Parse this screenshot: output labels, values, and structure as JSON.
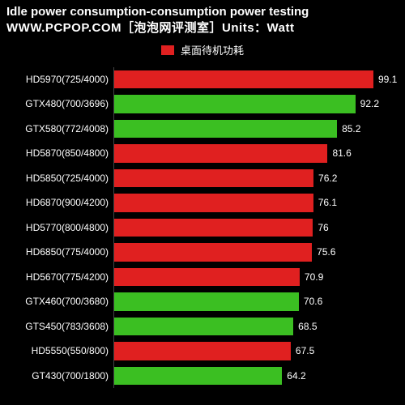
{
  "header": {
    "title": "Idle power consumption-consumption power testing",
    "subtitle": "WWW.PCPOP.COM［泡泡网评测室］Units：Watt"
  },
  "legend": {
    "swatch_color": "#e02020",
    "label": "桌面待机功耗"
  },
  "chart": {
    "type": "bar",
    "orientation": "horizontal",
    "background_color": "#000000",
    "text_color": "#ffffff",
    "label_fontsize": 12,
    "value_fontsize": 12,
    "xmin": 0,
    "xmax": 105,
    "grid_step": 20,
    "grid_color": "rgba(255,255,255,0.08)",
    "colors": {
      "red": "#e02020",
      "green": "#3bbf22"
    },
    "items": [
      {
        "label": "HD5970(725/4000)",
        "value": 99.1,
        "value_text": "99.1",
        "color": "red"
      },
      {
        "label": "GTX480(700/3696)",
        "value": 92.2,
        "value_text": "92.2",
        "color": "green"
      },
      {
        "label": "GTX580(772/4008)",
        "value": 85.2,
        "value_text": "85.2",
        "color": "green"
      },
      {
        "label": "HD5870(850/4800)",
        "value": 81.6,
        "value_text": "81.6",
        "color": "red"
      },
      {
        "label": "HD5850(725/4000)",
        "value": 76.2,
        "value_text": "76.2",
        "color": "red"
      },
      {
        "label": "HD6870(900/4200)",
        "value": 76.1,
        "value_text": "76.1",
        "color": "red"
      },
      {
        "label": "HD5770(800/4800)",
        "value": 76.0,
        "value_text": "76",
        "color": "red"
      },
      {
        "label": "HD6850(775/4000)",
        "value": 75.6,
        "value_text": "75.6",
        "color": "red"
      },
      {
        "label": "HD5670(775/4200)",
        "value": 70.9,
        "value_text": "70.9",
        "color": "red"
      },
      {
        "label": "GTX460(700/3680)",
        "value": 70.6,
        "value_text": "70.6",
        "color": "green"
      },
      {
        "label": "GTS450(783/3608)",
        "value": 68.5,
        "value_text": "68.5",
        "color": "green"
      },
      {
        "label": "HD5550(550/800)",
        "value": 67.5,
        "value_text": "67.5",
        "color": "red"
      },
      {
        "label": "GT430(700/1800)",
        "value": 64.2,
        "value_text": "64.2",
        "color": "green"
      }
    ]
  }
}
